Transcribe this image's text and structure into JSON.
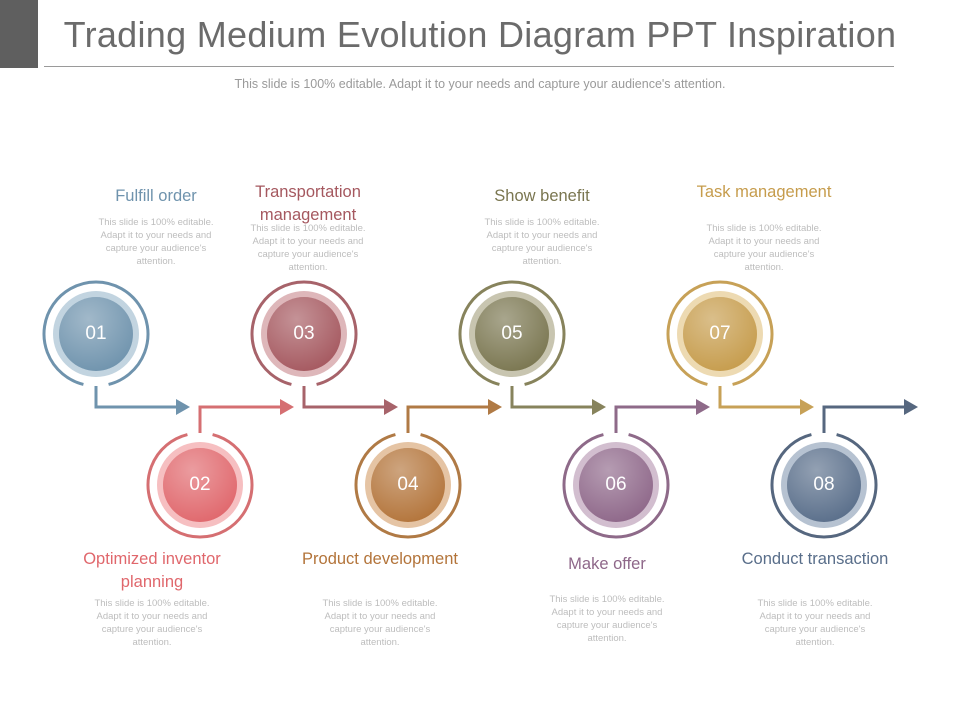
{
  "slide": {
    "title": "Trading Medium Evolution Diagram PPT Inspiration",
    "subtitle": "This slide is 100% editable. Adapt it to your needs and capture your audience's attention."
  },
  "steps": [
    {
      "number": "01",
      "label": "Fulfill order",
      "desc": "This slide is 100% editable. Adapt it to your needs and capture your audience's attention.",
      "color": "#6f93ad",
      "light": "#8fb0c6",
      "ring": "#6f93ad"
    },
    {
      "number": "02",
      "label": "Optimized inventor planning",
      "desc": "This slide is 100% editable. Adapt it to your needs and capture your audience's attention.",
      "color": "#e0676c",
      "light": "#ee8a8e",
      "ring": "#d56f72"
    },
    {
      "number": "03",
      "label": "Transportation management",
      "desc": "This slide is 100% editable. Adapt it to your needs and capture your audience's attention.",
      "color": "#a5585f",
      "light": "#c27c81",
      "ring": "#a7636a"
    },
    {
      "number": "04",
      "label": "Product development",
      "desc": "This slide is 100% editable. Adapt it to your needs and capture your audience's attention.",
      "color": "#b3743a",
      "light": "#cf9459",
      "ring": "#b07a45"
    },
    {
      "number": "05",
      "label": "Show benefit",
      "desc": "This slide is 100% editable. Adapt it to your needs and capture your audience's attention.",
      "color": "#7a7650",
      "light": "#9a9670",
      "ring": "#87835c"
    },
    {
      "number": "06",
      "label": "Make offer",
      "desc": "This slide is 100% editable. Adapt it to your needs and capture your audience's attention.",
      "color": "#8e6789",
      "light": "#ad88a8",
      "ring": "#8e6a89"
    },
    {
      "number": "07",
      "label": "Task management",
      "desc": "This slide is 100% editable. Adapt it to your needs and capture your audience's attention.",
      "color": "#c69c4c",
      "light": "#dfbb72",
      "ring": "#c7a157"
    },
    {
      "number": "08",
      "label": "Conduct transaction",
      "desc": "This slide is 100% editable. Adapt it to your needs and capture your audience's attention.",
      "color": "#596e8a",
      "light": "#7a8fab",
      "ring": "#56677f"
    }
  ]
}
